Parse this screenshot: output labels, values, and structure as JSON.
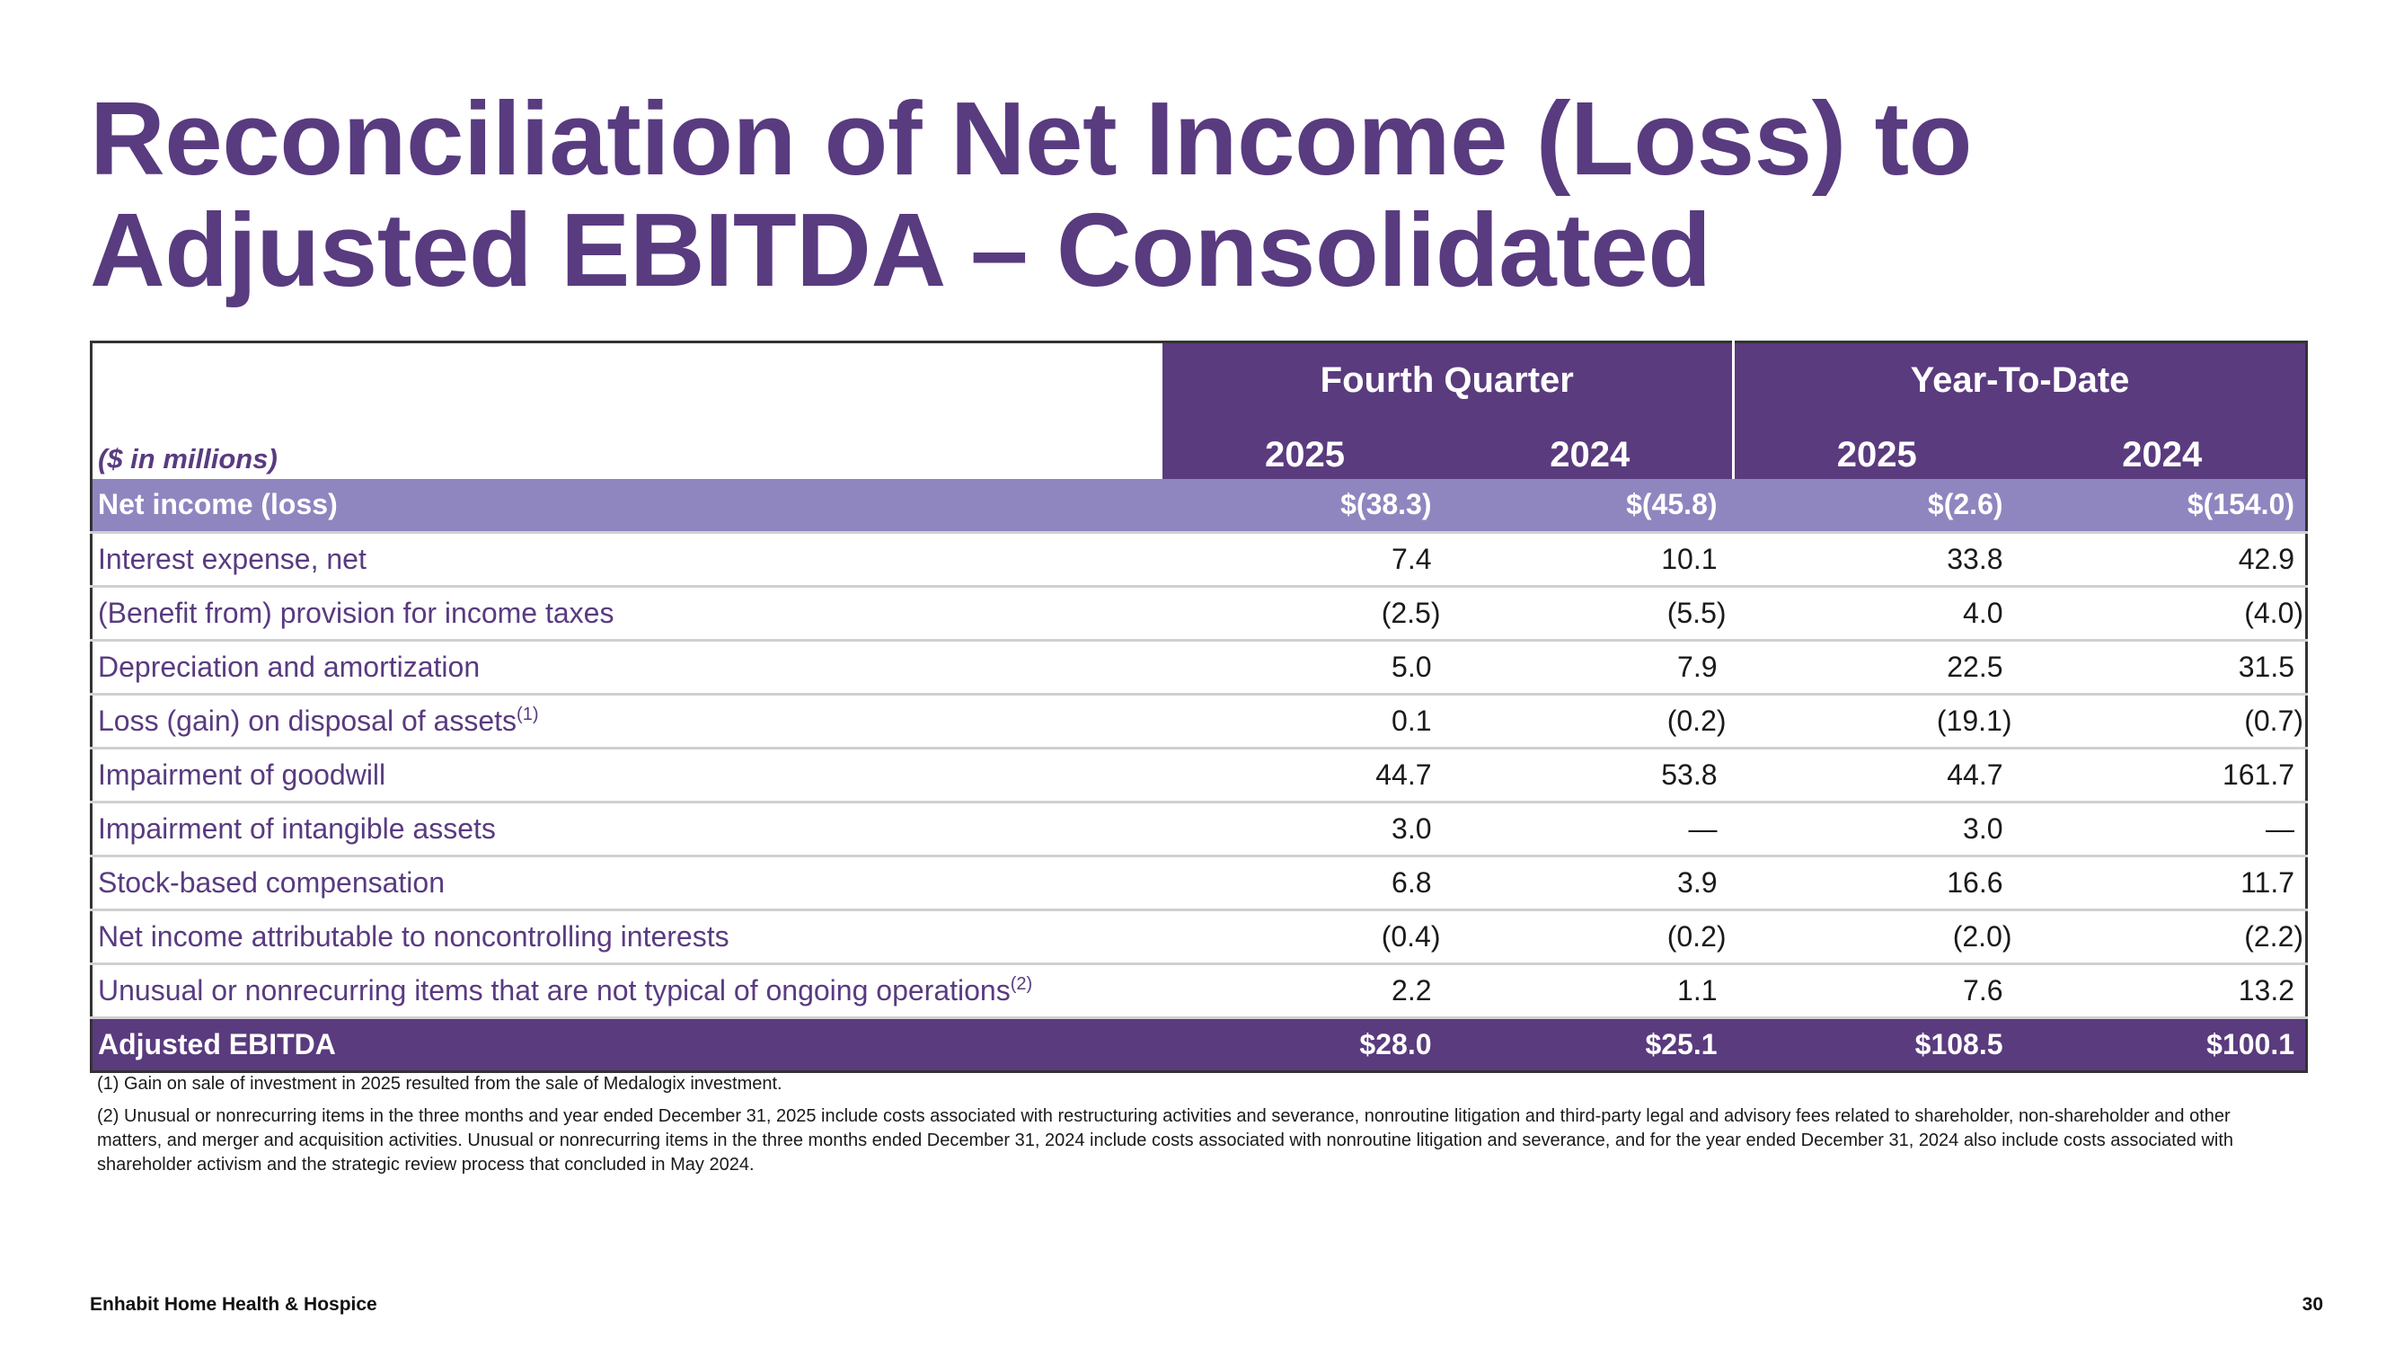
{
  "title": {
    "line1": "Reconciliation of Net Income (Loss) to",
    "line2": "Adjusted EBITDA – Consolidated"
  },
  "table": {
    "unit_label": "($ in millions)",
    "groups": [
      "Fourth Quarter",
      "Year-To-Date"
    ],
    "years": [
      "2025",
      "2024",
      "2025",
      "2024"
    ],
    "rows": [
      {
        "label": "Net income (loss)",
        "sup": "",
        "values": [
          "$(38.3)",
          "$(45.8)",
          "$(2.6)",
          "$(154.0)"
        ]
      },
      {
        "label": "Interest expense, net",
        "sup": "",
        "values": [
          "7.4",
          "10.1",
          "33.8",
          "42.9"
        ]
      },
      {
        "label": "(Benefit from) provision for income taxes",
        "sup": "",
        "values": [
          "(2.5)",
          "(5.5)",
          "4.0",
          "(4.0)"
        ]
      },
      {
        "label": "Depreciation and amortization",
        "sup": "",
        "values": [
          "5.0",
          "7.9",
          "22.5",
          "31.5"
        ]
      },
      {
        "label": "Loss (gain) on disposal of assets",
        "sup": "(1)",
        "values": [
          "0.1",
          "(0.2)",
          "(19.1)",
          "(0.7)"
        ]
      },
      {
        "label": "Impairment of goodwill",
        "sup": "",
        "values": [
          "44.7",
          "53.8",
          "44.7",
          "161.7"
        ]
      },
      {
        "label": "Impairment of intangible assets",
        "sup": "",
        "values": [
          "3.0",
          "—",
          "3.0",
          "—"
        ]
      },
      {
        "label": "Stock-based compensation",
        "sup": "",
        "values": [
          "6.8",
          "3.9",
          "16.6",
          "11.7"
        ]
      },
      {
        "label": "Net income attributable to noncontrolling interests",
        "sup": "",
        "values": [
          "(0.4)",
          "(0.2)",
          "(2.0)",
          "(2.2)"
        ]
      },
      {
        "label": "Unusual or nonrecurring items that are not typical of ongoing operations",
        "sup": "(2)",
        "values": [
          "2.2",
          "1.1",
          "7.6",
          "13.2"
        ]
      },
      {
        "label": "Adjusted EBITDA",
        "sup": "",
        "values": [
          "$28.0",
          "$25.1",
          "$108.5",
          "$100.1"
        ]
      }
    ]
  },
  "footnotes": [
    "(1) Gain on sale of investment in 2025 resulted from the sale of Medalogix investment.",
    "(2) Unusual or nonrecurring items in the three months and year ended December 31, 2025 include costs associated with restructuring activities and severance, nonroutine litigation and third-party legal and advisory fees related to shareholder, non-shareholder and other matters, and merger and acquisition activities. Unusual or nonrecurring items in the three months ended December 31, 2024 include costs associated with nonroutine litigation and severance, and for the year ended December 31, 2024 also include costs associated with shareholder activism and the strategic review process that concluded in May 2024."
  ],
  "footer": {
    "company": "Enhabit Home Health & Hospice",
    "page_number": "30"
  },
  "colors": {
    "brand_purple": "#5a3b7e",
    "highlight_row": "#8f86c0",
    "title_text": "#593b80"
  }
}
